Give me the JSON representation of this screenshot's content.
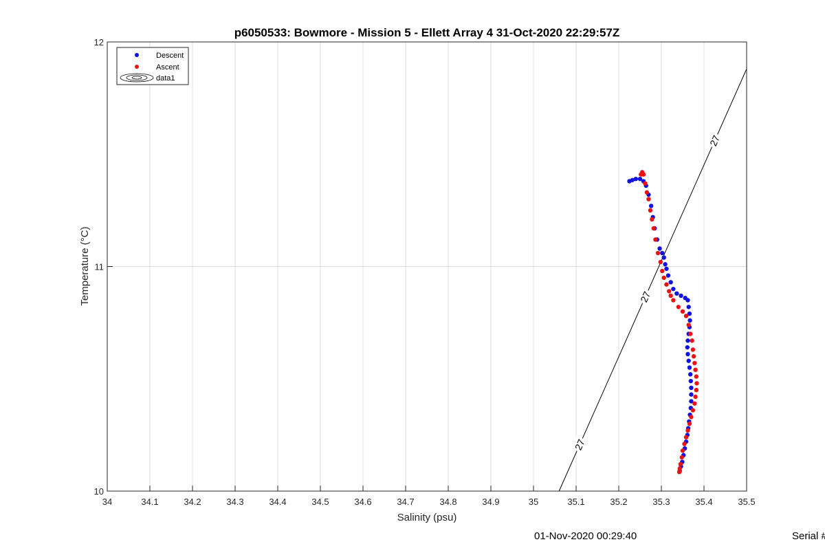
{
  "chart_data": {
    "type": "scatter",
    "title": "p6050533: Bowmore - Mission 5 - Ellett Array 4 31-Oct-2020 22:29:57Z",
    "xlabel": "Salinity (psu)",
    "ylabel": "Temperature (°C)",
    "xlim": [
      34,
      35.5
    ],
    "ylim": [
      10,
      12
    ],
    "x_ticks": [
      "34",
      "34.1",
      "34.2",
      "34.3",
      "34.4",
      "34.5",
      "34.6",
      "34.7",
      "34.8",
      "34.9",
      "35",
      "35.1",
      "35.2",
      "35.3",
      "35.4",
      "35.5"
    ],
    "y_ticks": [
      "10",
      "11",
      "12"
    ],
    "grid": true,
    "legend_position": "top-left",
    "legend": [
      "Descent",
      "Ascent",
      "data1"
    ],
    "contour": {
      "name": "data1",
      "level_label": "27",
      "line": [
        [
          35.06,
          10.0
        ],
        [
          35.5,
          11.88
        ]
      ]
    },
    "series": [
      {
        "name": "Descent",
        "color": "#1010e0",
        "points": [
          [
            35.225,
            11.38
          ],
          [
            35.232,
            11.385
          ],
          [
            35.24,
            11.39
          ],
          [
            35.25,
            11.39
          ],
          [
            35.258,
            11.38
          ],
          [
            35.264,
            11.36
          ],
          [
            35.27,
            11.32
          ],
          [
            35.276,
            11.27
          ],
          [
            35.28,
            11.22
          ],
          [
            35.284,
            11.17
          ],
          [
            35.29,
            11.12
          ],
          [
            35.296,
            11.08
          ],
          [
            35.302,
            11.06
          ],
          [
            35.306,
            11.04
          ],
          [
            35.309,
            11.01
          ],
          [
            35.312,
            10.99
          ],
          [
            35.316,
            10.96
          ],
          [
            35.322,
            10.93
          ],
          [
            35.328,
            10.9
          ],
          [
            35.336,
            10.88
          ],
          [
            35.346,
            10.87
          ],
          [
            35.356,
            10.86
          ],
          [
            35.362,
            10.85
          ],
          [
            35.364,
            10.82
          ],
          [
            35.366,
            10.79
          ],
          [
            35.367,
            10.76
          ],
          [
            35.366,
            10.73
          ],
          [
            35.364,
            10.7
          ],
          [
            35.362,
            10.67
          ],
          [
            35.361,
            10.64
          ],
          [
            35.362,
            10.61
          ],
          [
            35.364,
            10.58
          ],
          [
            35.366,
            10.55
          ],
          [
            35.368,
            10.52
          ],
          [
            35.369,
            10.49
          ],
          [
            35.37,
            10.46
          ],
          [
            35.37,
            10.43
          ],
          [
            35.37,
            10.4
          ],
          [
            35.369,
            10.37
          ],
          [
            35.367,
            10.34
          ],
          [
            35.365,
            10.31
          ],
          [
            35.363,
            10.28
          ],
          [
            35.361,
            10.25
          ],
          [
            35.358,
            10.22
          ],
          [
            35.355,
            10.19
          ],
          [
            35.352,
            10.16
          ],
          [
            35.349,
            10.13
          ],
          [
            35.346,
            10.11
          ],
          [
            35.343,
            10.09
          ]
        ]
      },
      {
        "name": "Ascent",
        "color": "#ee1111",
        "points": [
          [
            35.252,
            11.41
          ],
          [
            35.255,
            11.42
          ],
          [
            35.258,
            11.41
          ],
          [
            35.262,
            11.37
          ],
          [
            35.266,
            11.33
          ],
          [
            35.27,
            11.3
          ],
          [
            35.274,
            11.25
          ],
          [
            35.278,
            11.21
          ],
          [
            35.282,
            11.17
          ],
          [
            35.286,
            11.12
          ],
          [
            35.292,
            11.06
          ],
          [
            35.298,
            11.02
          ],
          [
            35.302,
            10.98
          ],
          [
            35.306,
            10.95
          ],
          [
            35.312,
            10.92
          ],
          [
            35.318,
            10.89
          ],
          [
            35.322,
            10.87
          ],
          [
            35.328,
            10.85
          ],
          [
            35.34,
            10.82
          ],
          [
            35.35,
            10.8
          ],
          [
            35.358,
            10.78
          ],
          [
            35.364,
            10.74
          ],
          [
            35.368,
            10.7
          ],
          [
            35.372,
            10.67
          ],
          [
            35.374,
            10.63
          ],
          [
            35.376,
            10.6
          ],
          [
            35.378,
            10.57
          ],
          [
            35.38,
            10.54
          ],
          [
            35.382,
            10.51
          ],
          [
            35.383,
            10.48
          ],
          [
            35.382,
            10.45
          ],
          [
            35.38,
            10.42
          ],
          [
            35.378,
            10.39
          ],
          [
            35.374,
            10.36
          ],
          [
            35.37,
            10.33
          ],
          [
            35.366,
            10.3
          ],
          [
            35.362,
            10.27
          ],
          [
            35.358,
            10.24
          ],
          [
            35.354,
            10.21
          ],
          [
            35.35,
            10.18
          ],
          [
            35.348,
            10.15
          ],
          [
            35.345,
            10.12
          ],
          [
            35.343,
            10.1
          ],
          [
            35.342,
            10.085
          ]
        ]
      }
    ]
  },
  "footer": {
    "timestamp": "01-Nov-2020 00:29:40",
    "serial": "Serial #"
  }
}
